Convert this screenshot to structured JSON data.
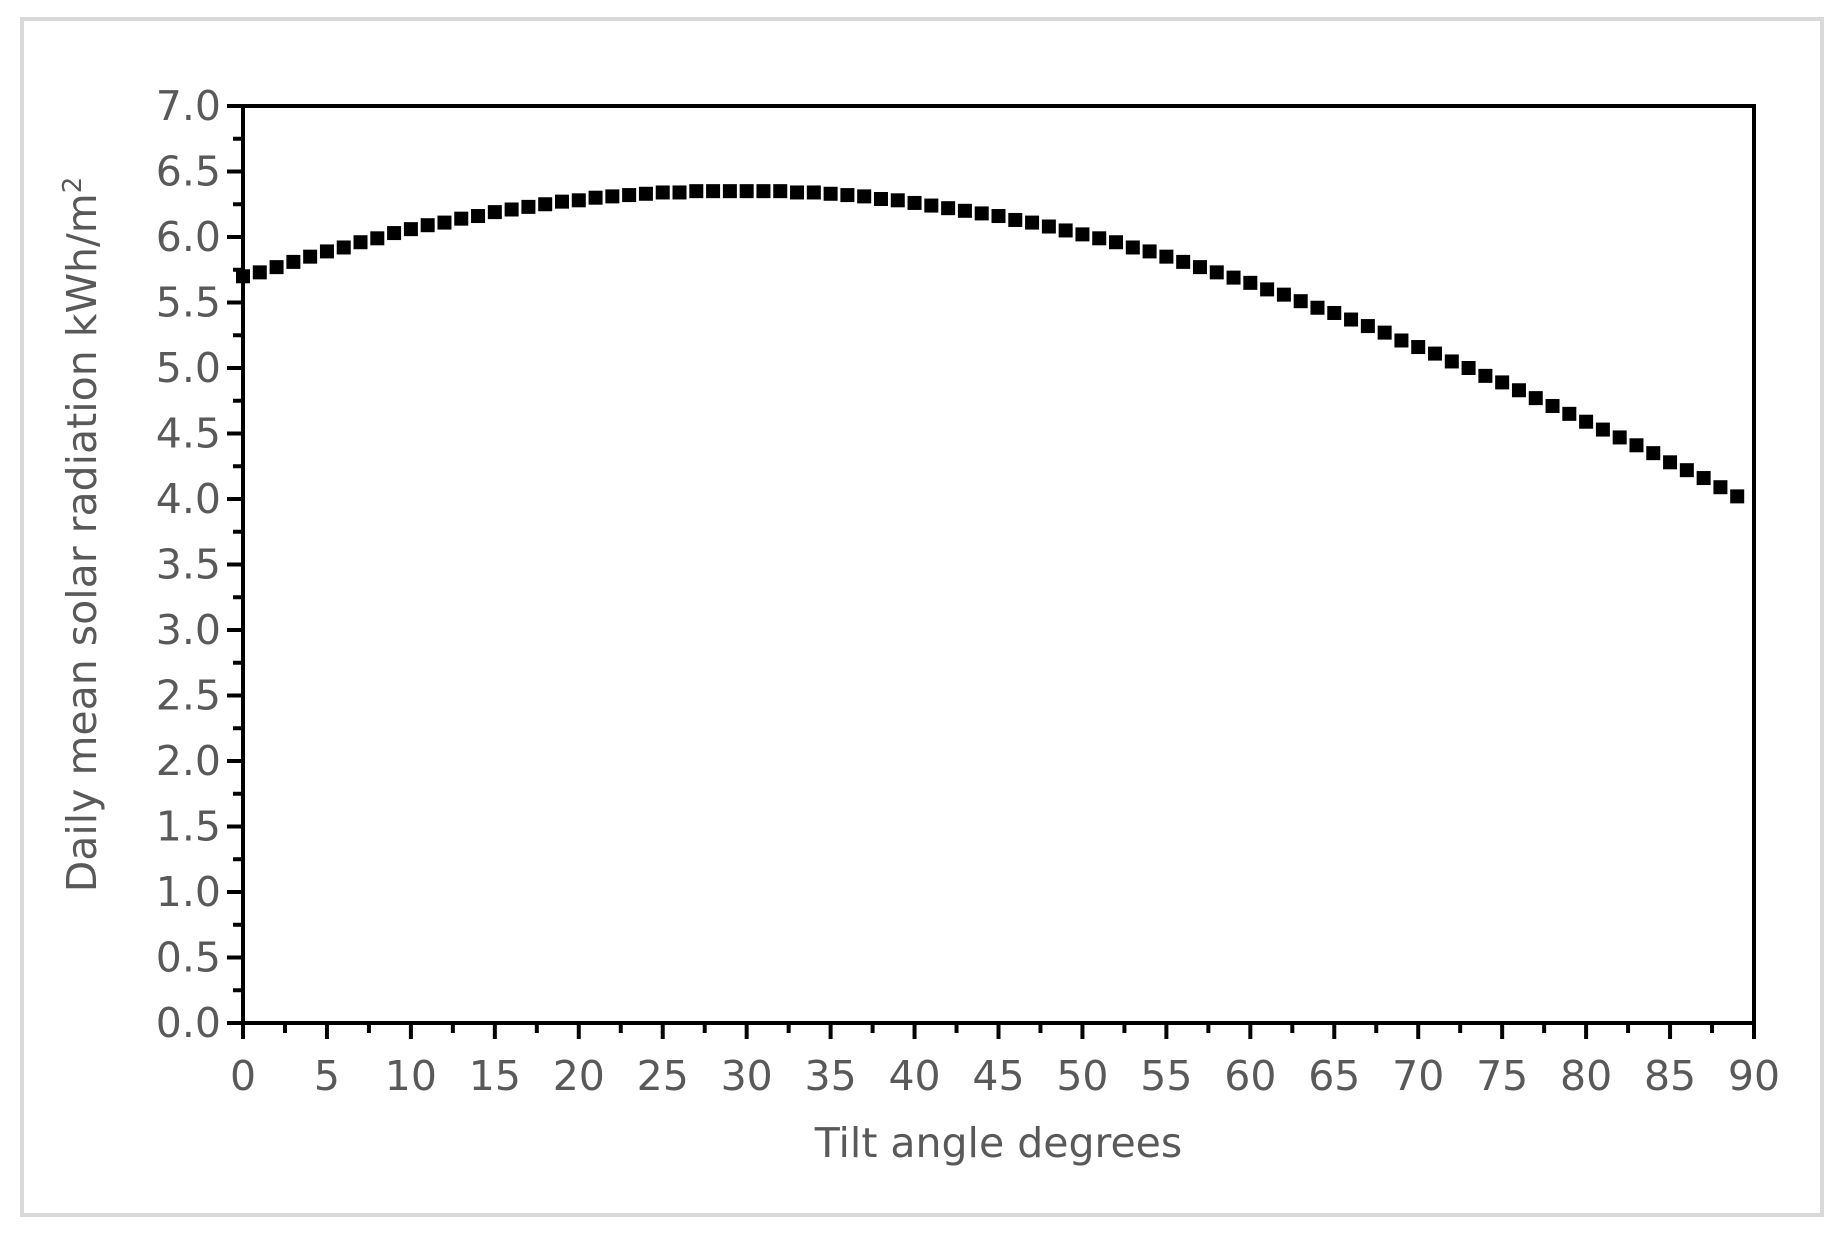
{
  "chart_data": {
    "type": "scatter",
    "title": "",
    "xlabel": "Tilt angle degrees",
    "ylabel": "Daily mean solar radiation kWh/m",
    "ylabel_sup": "2",
    "xlim": [
      0,
      90
    ],
    "ylim": [
      0,
      7
    ],
    "x_ticks": [
      "0",
      "5",
      "10",
      "15",
      "20",
      "25",
      "30",
      "35",
      "40",
      "45",
      "50",
      "55",
      "60",
      "65",
      "70",
      "75",
      "80",
      "85",
      "90"
    ],
    "y_ticks": [
      "0.0",
      "0.5",
      "1.0",
      "1.5",
      "2.0",
      "2.5",
      "3.0",
      "3.5",
      "4.0",
      "4.5",
      "5.0",
      "5.5",
      "6.0",
      "6.5",
      "7.0"
    ],
    "grid": false,
    "legend": "none",
    "marker_color": "#000000",
    "marker": "square",
    "series": [
      {
        "x": [
          0,
          1,
          2,
          3,
          4,
          5,
          6,
          7,
          8,
          9,
          10,
          11,
          12,
          13,
          14,
          15,
          16,
          17,
          18,
          19,
          20,
          21,
          22,
          23,
          24,
          25,
          26,
          27,
          28,
          29,
          30,
          31,
          32,
          33,
          34,
          35,
          36,
          37,
          38,
          39,
          40,
          41,
          42,
          43,
          44,
          45,
          46,
          47,
          48,
          49,
          50,
          51,
          52,
          53,
          54,
          55,
          56,
          57,
          58,
          59,
          60,
          61,
          62,
          63,
          64,
          65,
          66,
          67,
          68,
          69,
          70,
          71,
          72,
          73,
          74,
          75,
          76,
          77,
          78,
          79,
          80,
          81,
          82,
          83,
          84,
          85,
          86,
          87,
          88,
          89
        ],
        "y": [
          5.7,
          5.73,
          5.77,
          5.81,
          5.85,
          5.89,
          5.92,
          5.96,
          5.99,
          6.03,
          6.06,
          6.09,
          6.11,
          6.14,
          6.16,
          6.19,
          6.21,
          6.23,
          6.25,
          6.27,
          6.28,
          6.3,
          6.31,
          6.32,
          6.33,
          6.34,
          6.34,
          6.35,
          6.35,
          6.35,
          6.35,
          6.35,
          6.35,
          6.34,
          6.34,
          6.33,
          6.32,
          6.31,
          6.29,
          6.28,
          6.26,
          6.24,
          6.22,
          6.2,
          6.18,
          6.16,
          6.13,
          6.11,
          6.08,
          6.05,
          6.02,
          5.99,
          5.96,
          5.92,
          5.89,
          5.85,
          5.81,
          5.77,
          5.73,
          5.69,
          5.65,
          5.6,
          5.56,
          5.51,
          5.46,
          5.42,
          5.37,
          5.32,
          5.27,
          5.21,
          5.16,
          5.11,
          5.05,
          5.0,
          4.94,
          4.89,
          4.83,
          4.77,
          4.71,
          4.65,
          4.59,
          4.53,
          4.47,
          4.41,
          4.35,
          4.28,
          4.22,
          4.16,
          4.09,
          4.02
        ]
      }
    ]
  }
}
